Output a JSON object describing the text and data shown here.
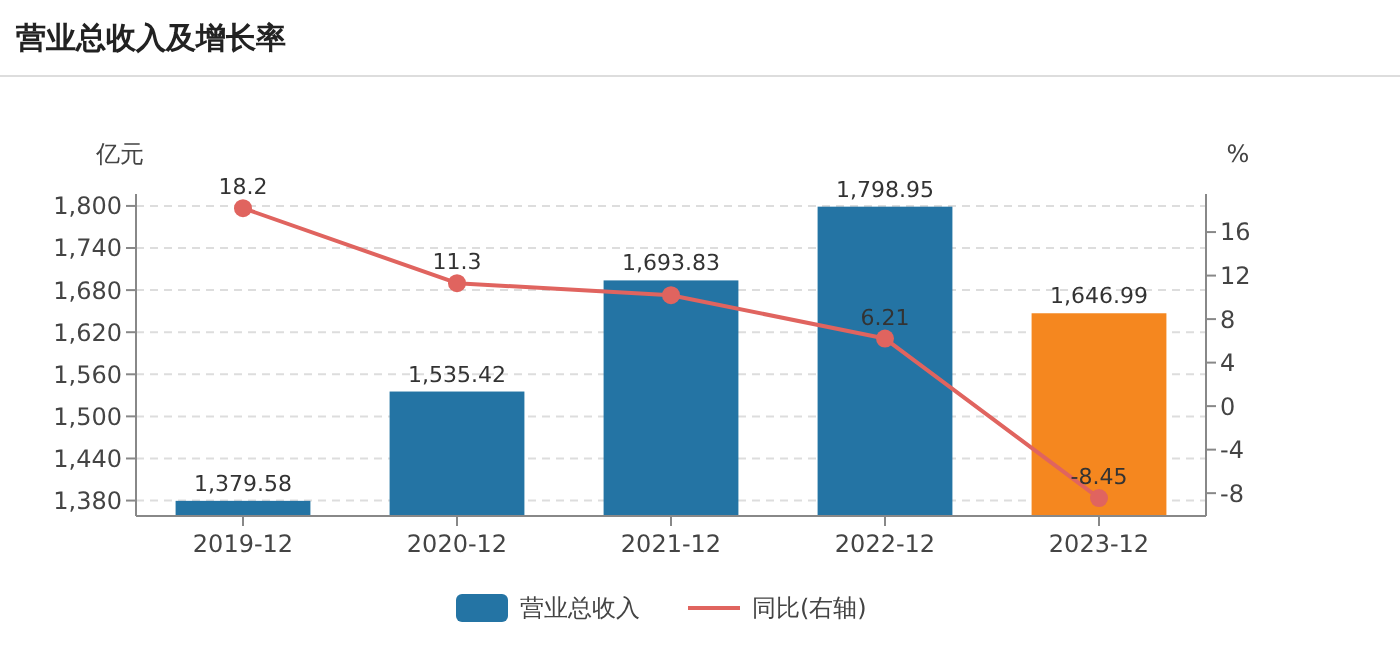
{
  "chart_data": {
    "type": "bar",
    "title": "营业总收入及增长率",
    "categories": [
      "2019-12",
      "2020-12",
      "2021-12",
      "2022-12",
      "2023-12"
    ],
    "series": [
      {
        "name": "营业总收入",
        "colors": [
          "#2474a4",
          "#2474a4",
          "#2474a4",
          "#2474a4",
          "#f5871f"
        ],
        "color": "#2474a4",
        "values": [
          1379.58,
          1535.42,
          1693.83,
          1798.95,
          1646.99
        ]
      },
      {
        "name": "同比(右轴)",
        "type": "line",
        "axis": "y2",
        "color": "#e0645f",
        "values": [
          18.2,
          11.3,
          10.2,
          6.21,
          -8.45
        ],
        "value_labels": [
          "18.2",
          "11.3",
          null,
          "6.21",
          "-8.45"
        ]
      }
    ],
    "ylabel": "亿元",
    "y2label": "%",
    "ylim": [
      1358,
      1817
    ],
    "yticks": [
      {
        "value": 1380,
        "label": "1,380"
      },
      {
        "value": 1440,
        "label": "1,440"
      },
      {
        "value": 1500,
        "label": "1,500"
      },
      {
        "value": 1560,
        "label": "1,560"
      },
      {
        "value": 1620,
        "label": "1,620"
      },
      {
        "value": 1680,
        "label": "1,680"
      },
      {
        "value": 1740,
        "label": "1,740"
      },
      {
        "value": 1800,
        "label": "1,800"
      }
    ],
    "y2lim": [
      -10.1,
      19.5
    ],
    "y2ticks": [
      -8,
      -4,
      0,
      4,
      8,
      12,
      16
    ],
    "value_labels": [
      "1,379.58",
      "1,535.42",
      "1,693.83",
      "1,798.95",
      "1,646.99"
    ],
    "grid": "y",
    "legend": "bottom",
    "marker": "circle",
    "line_style": "solid"
  }
}
